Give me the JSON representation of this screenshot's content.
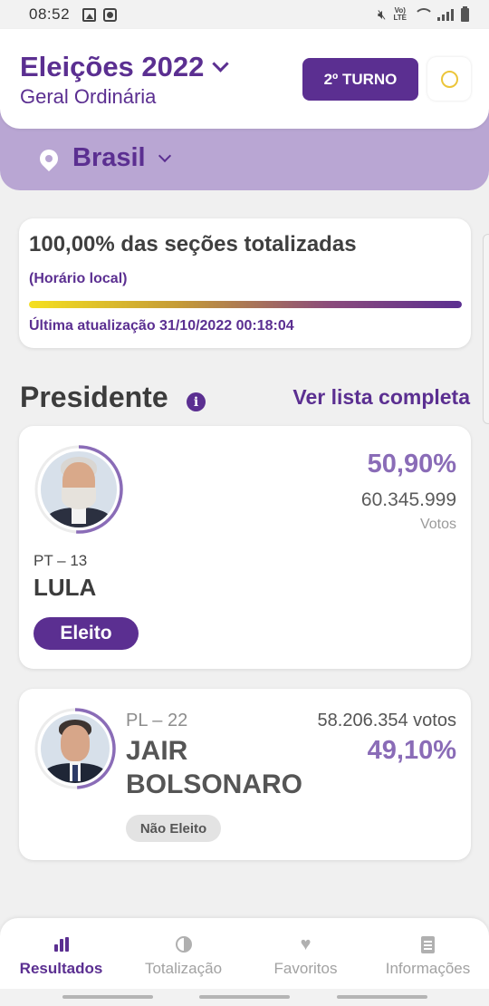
{
  "status_bar": {
    "time": "08:52",
    "volte": "Vo)\nLTE"
  },
  "header": {
    "title": "Eleições 2022",
    "subtitle": "Geral Ordinária",
    "turn_button": "2º TURNO",
    "location": "Brasil"
  },
  "progress": {
    "title": "100,00% das seções totalizadas",
    "note": "(Horário local)",
    "percent_complete": 100,
    "last_update": "Última atualização 31/10/2022 00:18:04"
  },
  "section": {
    "title": "Presidente",
    "see_all": "Ver lista completa"
  },
  "candidates": [
    {
      "party": "PT – 13",
      "name": "LULA",
      "percent": "50,90%",
      "votes": "60.345.999",
      "votes_label": "Votos",
      "status": "Eleito",
      "share": 0.509
    },
    {
      "party": "PL – 22",
      "name_line1": "JAIR",
      "name_line2": "BOLSONARO",
      "percent": "49,10%",
      "votes": "58.206.354 votos",
      "status": "Não Eleito",
      "share": 0.491
    }
  ],
  "nav": [
    {
      "label": "Resultados",
      "active": true,
      "icon": "bar-chart-icon"
    },
    {
      "label": "Totalização",
      "active": false,
      "icon": "pie-chart-icon"
    },
    {
      "label": "Favoritos",
      "active": false,
      "icon": "heart-icon"
    },
    {
      "label": "Informações",
      "active": false,
      "icon": "document-icon"
    }
  ],
  "colors": {
    "brand_purple": "#5b2f91",
    "light_purple": "#b9a6d3",
    "percent_purple": "#8a6cb7",
    "sun_yellow": "#ecc53a"
  }
}
